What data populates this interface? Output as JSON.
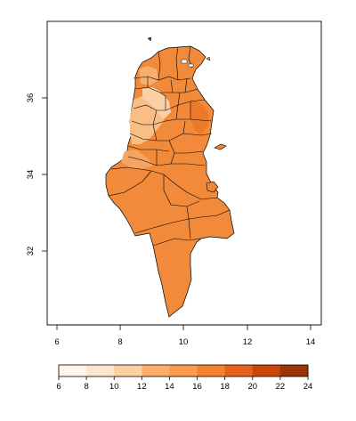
{
  "map": {
    "x_ticks": [
      "6",
      "8",
      "10",
      "12",
      "14"
    ],
    "y_ticks": [
      "32",
      "34",
      "36"
    ]
  },
  "legend": {
    "ticks": [
      "6",
      "8",
      "10",
      "12",
      "14",
      "16",
      "18",
      "20",
      "22",
      "24"
    ],
    "colors": [
      "#fff5eb",
      "#fee6ce",
      "#fdd0a2",
      "#fdae6b",
      "#fd9a4e",
      "#f5822f",
      "#e8611a",
      "#c8460a",
      "#9a3606"
    ]
  },
  "colors": {
    "land_main": "#f18a3a",
    "land_light": "#f8b47a",
    "land_lighter": "#fbcfa3",
    "land_dark": "#ea7424",
    "border": "#000000",
    "frame": "#000000"
  }
}
